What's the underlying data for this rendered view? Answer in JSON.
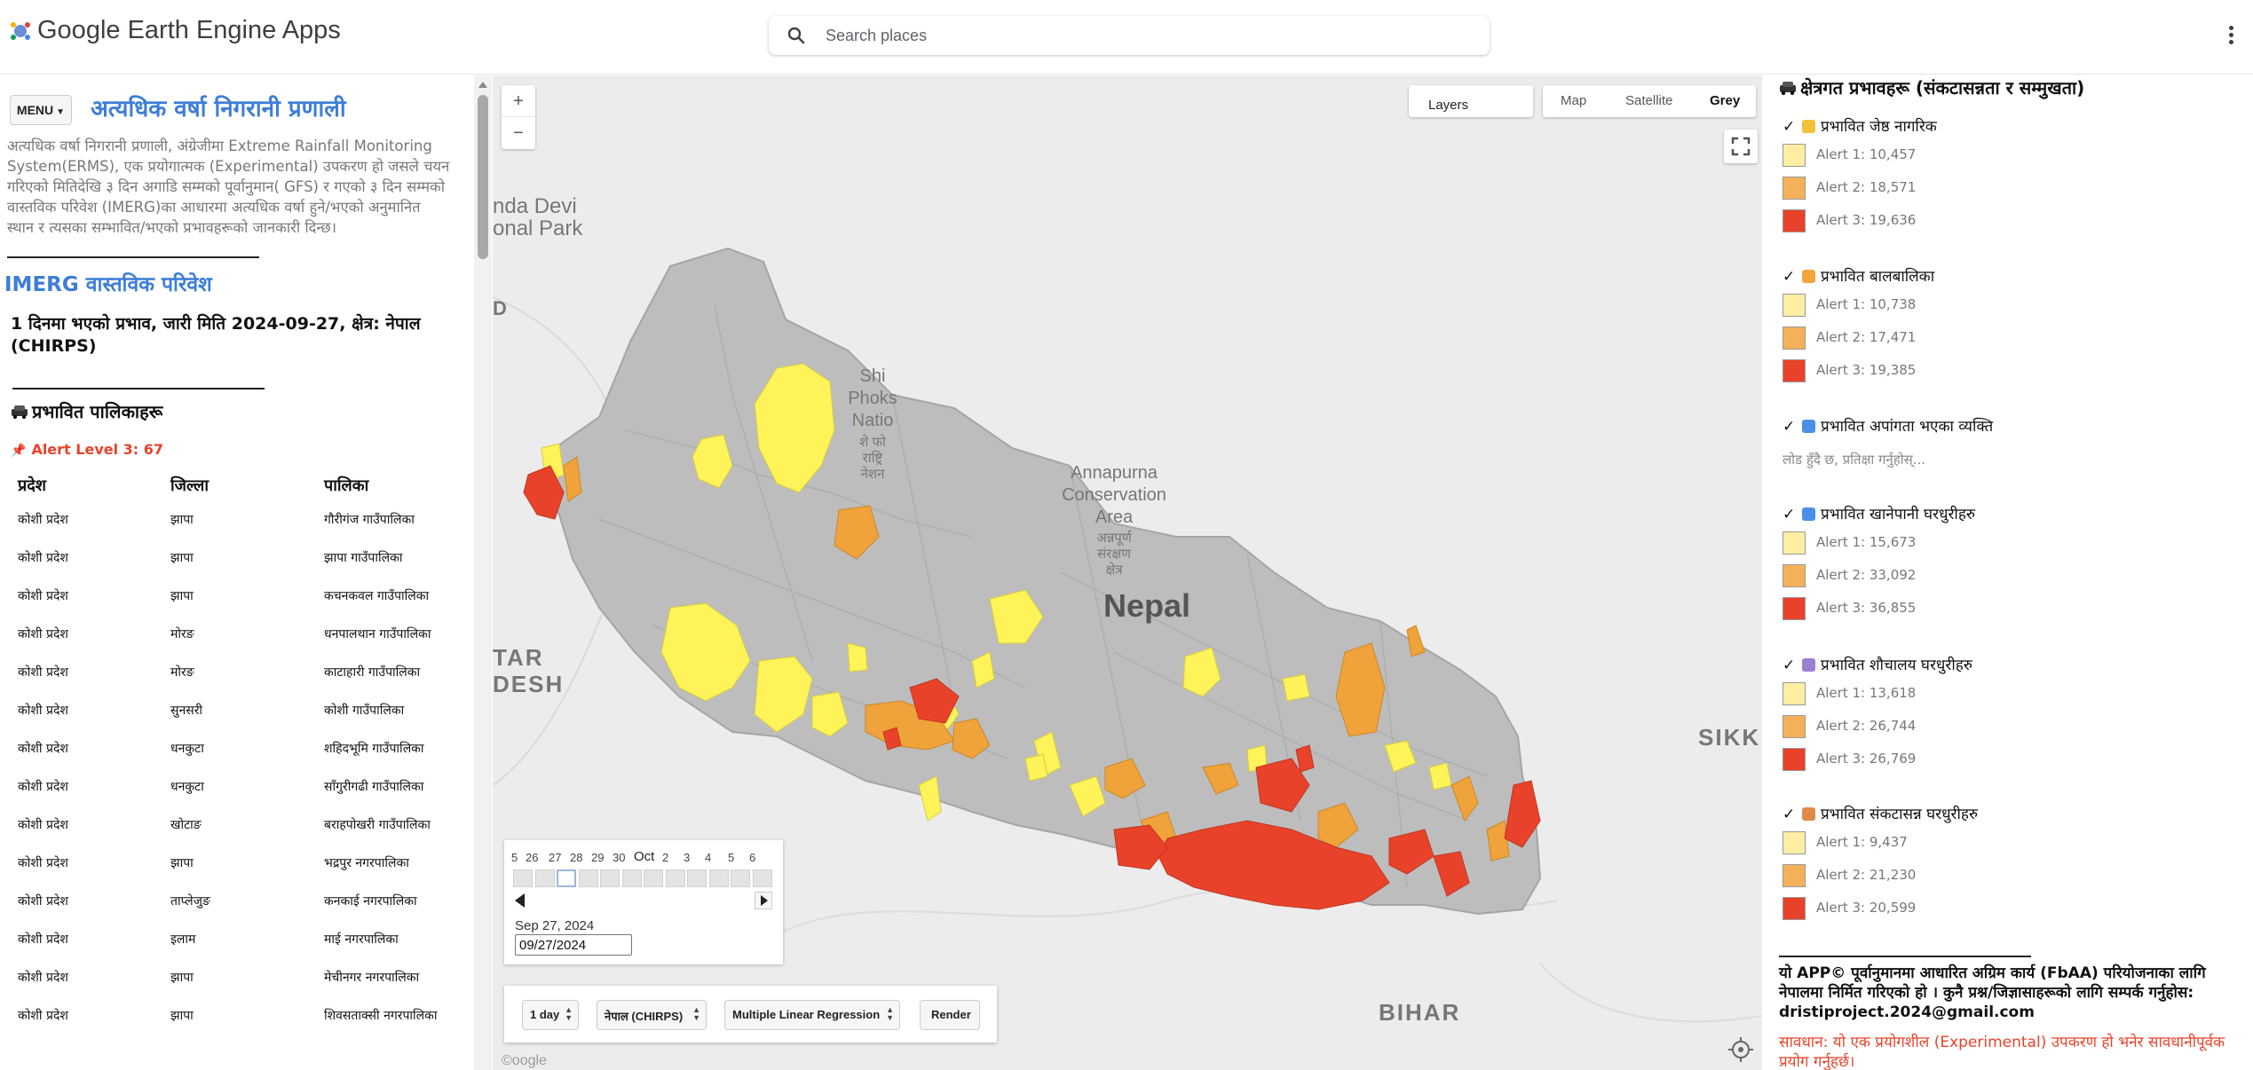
{
  "header": {
    "app_title": "Google Earth Engine Apps",
    "search_placeholder": "Search places"
  },
  "left_panel": {
    "menu_label": "MENU",
    "app_heading": "अत्यधिक वर्षा निगरानी प्रणाली",
    "app_description": "अत्यधिक वर्षा निगरानी प्रणाली, अंग्रेजीमा Extreme Rainfall Monitoring System(ERMS), एक प्रयोगात्मक (Experimental) उपकरण हो जसले चयन गरिएको मितिदेखि ३ दिन अगाडि सम्मको पूर्वानुमान( GFS) र गएको ३ दिन सम्मको वास्तविक परिवेश (IMERG)का आधारमा अत्यधिक वर्षा हुने/भएको अनुमानित स्थान र त्यसका सम्भावित/भएको प्रभावहरूको जानकारी दिन्छ।",
    "imerg_heading": "IMERG वास्तविक परिवेश",
    "impact_title": "1 दिनमा भएको प्रभाव, जारी मिति 2024-09-27, क्षेत्र: नेपाल (CHIRPS)",
    "municipality_heading": "प्रभावित पालिकाहरू",
    "alert_level": "Alert Level 3: 67",
    "table_headers": [
      "प्रदेश",
      "जिल्ला",
      "पालिका"
    ],
    "rows": [
      [
        "कोशी प्रदेश",
        "झापा",
        "गौरीगंज गाउँपालिका"
      ],
      [
        "कोशी प्रदेश",
        "झापा",
        "झापा गाउँपालिका"
      ],
      [
        "कोशी प्रदेश",
        "झापा",
        "कचनकवल गाउँपालिका"
      ],
      [
        "कोशी प्रदेश",
        "मोरङ",
        "धनपालथान गाउँपालिका"
      ],
      [
        "कोशी प्रदेश",
        "मोरङ",
        "काटाहारी गाउँपालिका"
      ],
      [
        "कोशी प्रदेश",
        "सुनसरी",
        "कोशी गाउँपालिका"
      ],
      [
        "कोशी प्रदेश",
        "धनकुटा",
        "शहिदभूमि गाउँपालिका"
      ],
      [
        "कोशी प्रदेश",
        "धनकुटा",
        "साँगुरीगढी गाउँपालिका"
      ],
      [
        "कोशी प्रदेश",
        "खोटाङ",
        "बराहपोखरी गाउँपालिका"
      ],
      [
        "कोशी प्रदेश",
        "झापा",
        "भद्रपुर नगरपालिका"
      ],
      [
        "कोशी प्रदेश",
        "ताप्लेजुङ",
        "कनकाई नगरपालिका"
      ],
      [
        "कोशी प्रदेश",
        "इलाम",
        "माई नगरपालिका"
      ],
      [
        "कोशी प्रदेश",
        "झापा",
        "मेचीनगर नगरपालिका"
      ],
      [
        "कोशी प्रदेश",
        "झापा",
        "शिवसताक्सी नगरपालिका"
      ]
    ]
  },
  "map": {
    "layers_label": "Layers",
    "map_types": [
      "Map",
      "Satellite",
      "Grey"
    ],
    "selected_map_type": "Grey",
    "labels": {
      "country": "Nepal",
      "annapurna": [
        "Annapurna",
        "Conservation",
        "Area",
        "अन्नपूर्ण",
        "संरक्षण",
        "क्षेत्र"
      ],
      "nanda_devi": [
        "nda Devi",
        "onal Park"
      ],
      "shey": [
        "Shi",
        "Phoks",
        "Natio",
        "शे फो",
        "राष्ट्रि",
        "नेशन"
      ],
      "uttar": [
        "TAR",
        "DESH"
      ],
      "bihar": "BIHAR",
      "sikkim": "SIKK",
      "d_left": "D"
    },
    "attribution": "©oogle",
    "colors": {
      "alert1": "#fff35a",
      "alert2": "#f0a33a",
      "alert3": "#e8432a",
      "base": "#bdbdbd"
    },
    "timeline": {
      "tick_labels": [
        "5",
        "26",
        "27",
        "28",
        "29",
        "30",
        "Oct",
        "2",
        "3",
        "4",
        "5",
        "6"
      ],
      "selected_date": "Sep 27, 2024",
      "date_input_value": "09/27/2024"
    },
    "controls": {
      "period": "1 day",
      "region": "नेपाल (CHIRPS)",
      "model": "Multiple Linear Regression",
      "render_label": "Render"
    }
  },
  "right_panel": {
    "heading": "क्षेत्रगत प्रभावहरू (संकटासन्नता र सम्मुखता)",
    "categories": [
      {
        "title": "प्रभावित जेष्ठ नागरिक",
        "icon": "elderly-icon",
        "legend": [
          "Alert 1: 10,457",
          "Alert 2: 18,571",
          "Alert 3: 19,636"
        ]
      },
      {
        "title": "प्रभावित बालबालिका",
        "icon": "child-icon",
        "legend": [
          "Alert 1: 10,738",
          "Alert 2: 17,471",
          "Alert 3: 19,385"
        ]
      },
      {
        "title": "प्रभावित अपांगता भएका व्यक्ति",
        "icon": "wheelchair-icon",
        "loading": "लोड हुँदै छ, प्रतिक्षा गर्नुहोस्..."
      },
      {
        "title": "प्रभावित खानेपानी घरधुरीहरु",
        "icon": "water-icon",
        "legend": [
          "Alert 1: 15,673",
          "Alert 2: 33,092",
          "Alert 3: 36,855"
        ]
      },
      {
        "title": "प्रभावित शौचालय घरधुरीहरु",
        "icon": "toilet-icon",
        "legend": [
          "Alert 1: 13,618",
          "Alert 2: 26,744",
          "Alert 3: 26,769"
        ]
      },
      {
        "title": "प्रभावित संकटासन्न घरधुरीहरु",
        "icon": "house-icon",
        "legend": [
          "Alert 1: 9,437",
          "Alert 2: 21,230",
          "Alert 3: 20,599"
        ]
      }
    ],
    "footer": "यो APP© पूर्वानुमानमा आधारित अग्रिम कार्य (FbAA) परियोजनाका लागि नेपालमा निर्मित गरिएको हो । कुनै प्रश्न/जिज्ञासाहरूको लागि सम्पर्क गर्नुहोस: dristiproject.2024@gmail.com",
    "warning": "सावधान: यो एक प्रयोगशील (Experimental) उपकरण हो भनेर सावधानीपूर्वक प्रयोग गर्नुहर्छ।"
  }
}
